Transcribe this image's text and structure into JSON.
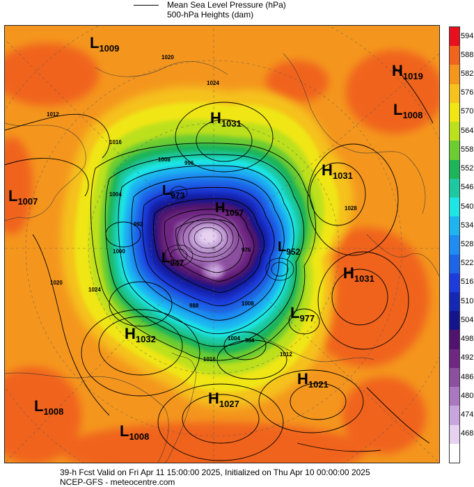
{
  "legend": {
    "mslp_label": "Mean Sea Level Pressure (hPa)",
    "heights_label": "500-hPa Heights (dam)"
  },
  "footer": {
    "valid_line": "39-h Fcst Valid on Fri Apr 11 15:00:00 2025, Initialized on Thu Apr 10 00:00:00 2025",
    "source_line": "NCEP-GFS  - meteocentre.com"
  },
  "colorbar": {
    "levels": [
      {
        "value": "594",
        "color": "#e8101c"
      },
      {
        "value": "588",
        "color": "#f0641e"
      },
      {
        "value": "582",
        "color": "#f4961e"
      },
      {
        "value": "576",
        "color": "#f5c21e"
      },
      {
        "value": "570",
        "color": "#f0e614"
      },
      {
        "value": "564",
        "color": "#bde01e"
      },
      {
        "value": "558",
        "color": "#6ccc32"
      },
      {
        "value": "552",
        "color": "#1eb45a"
      },
      {
        "value": "546",
        "color": "#1ec8a0"
      },
      {
        "value": "540",
        "color": "#1ee6e6"
      },
      {
        "value": "534",
        "color": "#1eb4f0"
      },
      {
        "value": "528",
        "color": "#1e8cf0"
      },
      {
        "value": "522",
        "color": "#1e64e6"
      },
      {
        "value": "516",
        "color": "#1e3cdc"
      },
      {
        "value": "510",
        "color": "#1428b4"
      },
      {
        "value": "504",
        "color": "#14148c"
      },
      {
        "value": "498",
        "color": "#50146e"
      },
      {
        "value": "492",
        "color": "#6e2882"
      },
      {
        "value": "486",
        "color": "#8c50a0"
      },
      {
        "value": "480",
        "color": "#aa78be"
      },
      {
        "value": "474",
        "color": "#c8a5dc"
      },
      {
        "value": "468",
        "color": "#e6d2f0"
      },
      {
        "value": "",
        "color": "#ffffff"
      }
    ]
  },
  "systems": [
    {
      "type": "L",
      "value": "1009"
    },
    {
      "type": "H",
      "value": "1031"
    },
    {
      "type": "H",
      "value": "1019"
    },
    {
      "type": "L",
      "value": "1008"
    },
    {
      "type": "L",
      "value": "1007"
    },
    {
      "type": "H",
      "value": "1031"
    },
    {
      "type": "L",
      "value": "973"
    },
    {
      "type": "H",
      "value": "1057"
    },
    {
      "type": "L",
      "value": "947"
    },
    {
      "type": "L",
      "value": "952"
    },
    {
      "type": "H",
      "value": "1031"
    },
    {
      "type": "L",
      "value": "977"
    },
    {
      "type": "H",
      "value": "1032"
    },
    {
      "type": "H",
      "value": "1021"
    },
    {
      "type": "H",
      "value": "1027"
    },
    {
      "type": "L",
      "value": "1008"
    },
    {
      "type": "L",
      "value": "1008"
    }
  ],
  "isobar_labels": [
    "1012",
    "1016",
    "1020",
    "1024",
    "1008",
    "1004",
    "996",
    "992",
    "1000",
    "1028",
    "976",
    "988",
    "984",
    "1016",
    "1020",
    "1024",
    "1012",
    "1008",
    "1004"
  ]
}
